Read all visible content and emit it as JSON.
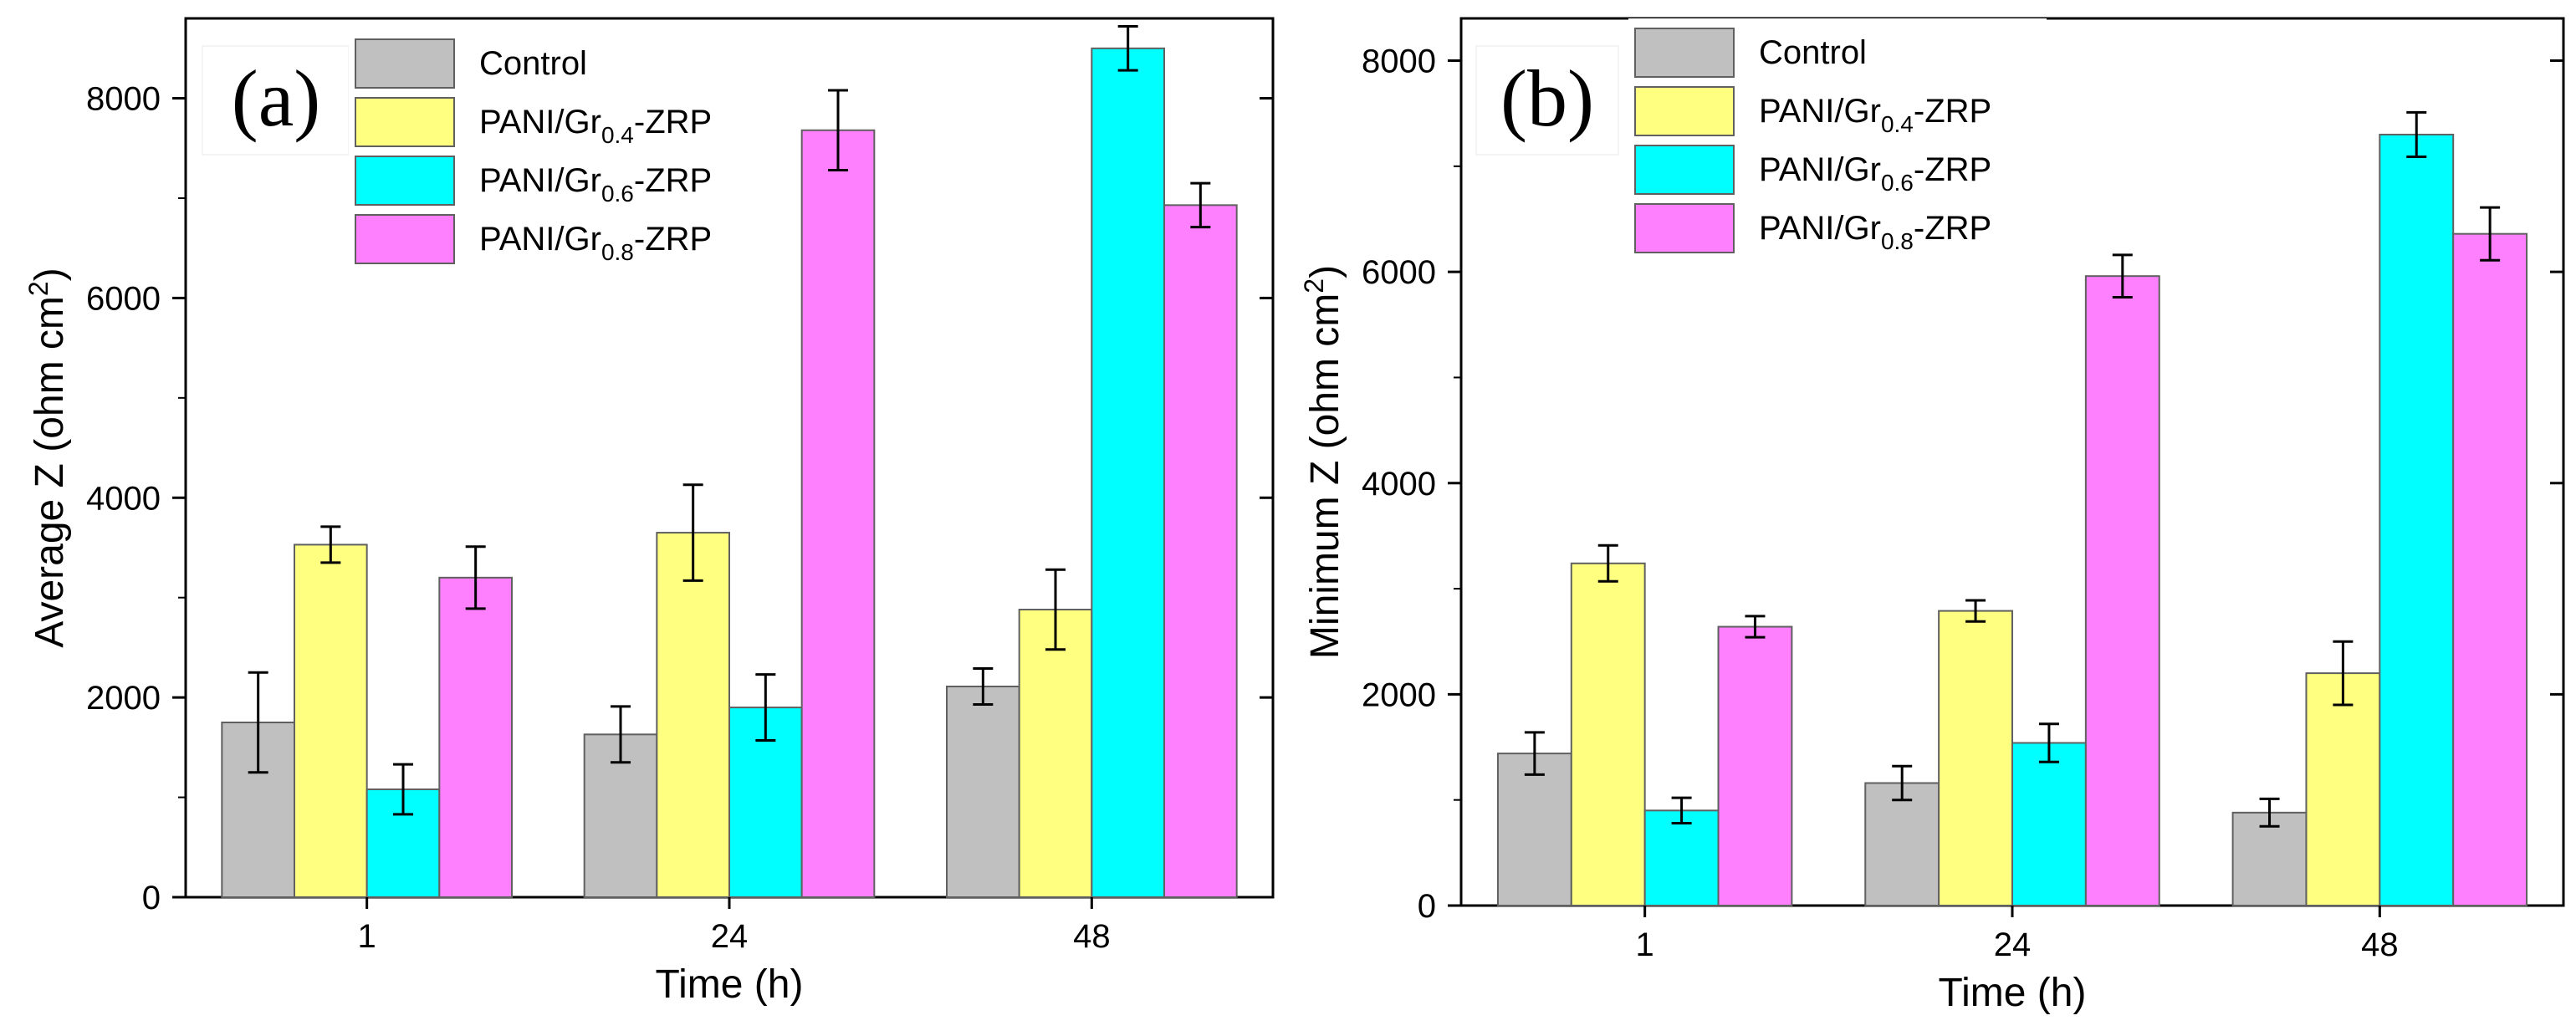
{
  "chart_data": [
    {
      "type": "bar",
      "panel_label": "(a)",
      "title": "",
      "xlabel": "Time (h)",
      "ylabel": "Average Z (ohm cm²)",
      "ylabel_main": "Average Z (ohm cm",
      "ylabel_sup": "2",
      "ylabel_end": ")",
      "ylim": [
        0,
        8800
      ],
      "yticks": [
        0,
        2000,
        4000,
        6000,
        8000
      ],
      "ytick_labels": [
        "0",
        "2000",
        "4000",
        "6000",
        "8000"
      ],
      "categories": [
        "1",
        "24",
        "48"
      ],
      "series": [
        {
          "name": "Control",
          "values": [
            1750,
            1630,
            2110
          ],
          "errors": [
            500,
            280,
            180
          ]
        },
        {
          "name": "PANI/Gr0.4-ZRP",
          "values": [
            3530,
            3650,
            2880
          ],
          "errors": [
            180,
            480,
            400
          ]
        },
        {
          "name": "PANI/Gr0.6-ZRP",
          "values": [
            1080,
            1900,
            8500
          ],
          "errors": [
            250,
            330,
            220
          ]
        },
        {
          "name": "PANI/Gr0.8-ZRP",
          "values": [
            3200,
            7680,
            6930
          ],
          "errors": [
            310,
            400,
            220
          ]
        }
      ]
    },
    {
      "type": "bar",
      "panel_label": "(b)",
      "title": "",
      "xlabel": "Time (h)",
      "ylabel": "Minimum Z (ohm cm²)",
      "ylabel_main": "Minimum Z (ohm cm",
      "ylabel_sup": "2",
      "ylabel_end": ")",
      "ylim": [
        0,
        8400
      ],
      "yticks": [
        0,
        2000,
        4000,
        6000,
        8000
      ],
      "ytick_labels": [
        "0",
        "2000",
        "4000",
        "6000",
        "8000"
      ],
      "categories": [
        "1",
        "24",
        "48"
      ],
      "series": [
        {
          "name": "Control",
          "values": [
            1440,
            1160,
            880
          ],
          "errors": [
            200,
            160,
            130
          ]
        },
        {
          "name": "PANI/Gr0.4-ZRP",
          "values": [
            3240,
            2790,
            2200
          ],
          "errors": [
            170,
            100,
            300
          ]
        },
        {
          "name": "PANI/Gr0.6-ZRP",
          "values": [
            900,
            1540,
            7300
          ],
          "errors": [
            120,
            180,
            210
          ]
        },
        {
          "name": "PANI/Gr0.8-ZRP",
          "values": [
            2640,
            5960,
            6360
          ],
          "errors": [
            100,
            200,
            250
          ]
        }
      ]
    }
  ],
  "legend": [
    {
      "base": "Control",
      "sub": "",
      "suffix": "",
      "color": "#c0c0c0"
    },
    {
      "base": "PANI/Gr",
      "sub": "0.4",
      "suffix": "-ZRP",
      "color": "#ffff80"
    },
    {
      "base": "PANI/Gr",
      "sub": "0.6",
      "suffix": "-ZRP",
      "color": "#00ffff"
    },
    {
      "base": "PANI/Gr",
      "sub": "0.8",
      "suffix": "-ZRP",
      "color": "#ff80ff"
    }
  ],
  "colors": {
    "axis": "#000000",
    "bar_stroke": "#606060",
    "background": "#ffffff"
  }
}
